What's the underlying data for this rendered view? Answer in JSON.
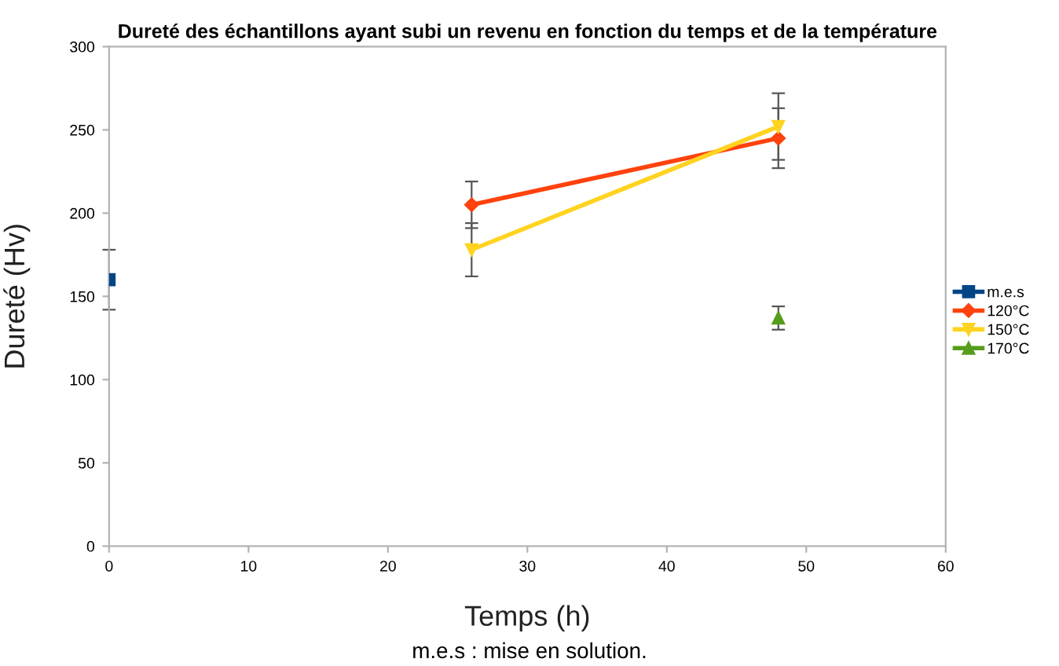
{
  "chart_data": {
    "type": "line",
    "title": "Dureté des échantillons ayant subi un revenu en fonction du temps et de la température",
    "xlabel": "Temps (h)",
    "ylabel": "Dureté (Hv)",
    "annotations": [
      "m.e.s : mise en solution."
    ],
    "xlim": [
      0,
      60
    ],
    "xticks": [
      0,
      10,
      20,
      30,
      40,
      50,
      60
    ],
    "ylim": [
      0,
      300
    ],
    "yticks": [
      0,
      50,
      100,
      150,
      200,
      250,
      300
    ],
    "grid": false,
    "legend": "right",
    "series": [
      {
        "name": "m.e.s",
        "color": "#004586",
        "marker": "square",
        "x": [
          0
        ],
        "values": [
          160
        ],
        "errors": [
          18
        ]
      },
      {
        "name": "120°C",
        "color": "#ff420e",
        "marker": "diamond",
        "x": [
          26,
          48
        ],
        "values": [
          205,
          245
        ],
        "errors": [
          14,
          18
        ]
      },
      {
        "name": "150°C",
        "color": "#ffd320",
        "marker": "triangle_down",
        "x": [
          26,
          48
        ],
        "values": [
          178,
          252
        ],
        "errors": [
          16,
          20
        ]
      },
      {
        "name": "170°C",
        "color": "#579d1c",
        "marker": "triangle",
        "x": [
          48
        ],
        "values": [
          137
        ],
        "errors": [
          7
        ]
      }
    ]
  }
}
